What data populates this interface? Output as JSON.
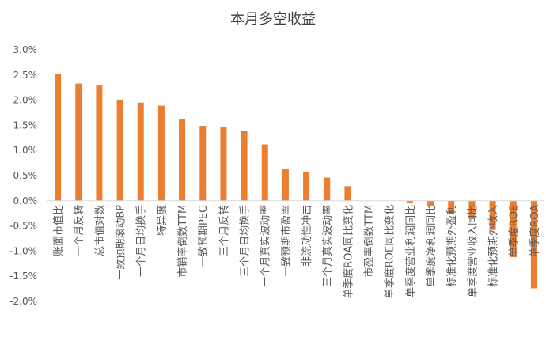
{
  "chart_data": {
    "type": "bar",
    "title": "本月多空收益",
    "xlabel": "",
    "ylabel": "",
    "ylim": [
      -2.0,
      3.0
    ],
    "yticks": [
      "3.0%",
      "2.5%",
      "2.0%",
      "1.5%",
      "1.0%",
      "0.5%",
      "0.0%",
      "-0.5%",
      "-1.0%",
      "-1.5%",
      "-2.0%"
    ],
    "grid": false,
    "legend": "none",
    "categories": [
      "账面市值比",
      "一个月反转",
      "总市值对数",
      "一致预期滚动BP",
      "一个月日均换手",
      "特异度",
      "市销率倒数TTM",
      "一致预期PEG",
      "三个月反转",
      "三个月日均换手",
      "一个月真实波动率",
      "一致预期市盈率",
      "非流动性冲击",
      "三个月真实波动率",
      "单季度ROA同比变化",
      "市盈率倒数TTM",
      "单季度ROE同比变化",
      "单季度营业利润同比",
      "单季度净利润同比",
      "标准化预期外盈利",
      "单季度营业收入同比",
      "标准化预期外收入",
      "单季度ROE",
      "单季度ROA"
    ],
    "values": [
      2.52,
      2.33,
      2.29,
      2.01,
      1.95,
      1.89,
      1.63,
      1.49,
      1.46,
      1.39,
      1.12,
      0.64,
      0.58,
      0.46,
      0.29,
      0.0,
      0.0,
      -0.04,
      -0.1,
      -0.26,
      -0.36,
      -0.58,
      -1.12,
      -1.74
    ],
    "colors": {
      "bar": "#ED7D31",
      "axis": "#D9D9D9",
      "text": "#595959"
    }
  }
}
